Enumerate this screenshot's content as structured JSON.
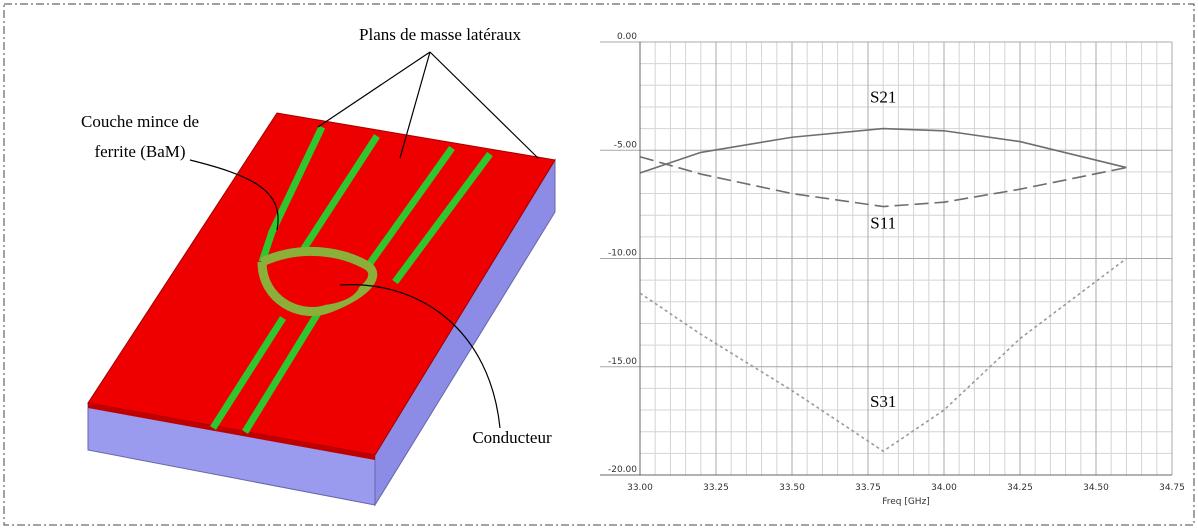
{
  "diagram": {
    "labels": {
      "ground": "Plans de masse latéraux",
      "ferrite_1": "Couche mince de",
      "ferrite_2": "ferrite (BaM)",
      "conductor": "Conducteur"
    }
  },
  "chart_data": {
    "type": "line",
    "x": [
      33.0,
      33.2,
      33.5,
      33.8,
      34.0,
      34.25,
      34.6
    ],
    "xlabel": "Freq [GHz]",
    "xlim": [
      33,
      34.75
    ],
    "xticks": [
      {
        "value": 33,
        "label": "33.00"
      },
      {
        "value": 33.25,
        "label": "33.25"
      },
      {
        "value": 33.5,
        "label": "33.50"
      },
      {
        "value": 33.75,
        "label": "33.75"
      },
      {
        "value": 34,
        "label": "34.00"
      },
      {
        "value": 34.25,
        "label": "34.25"
      },
      {
        "value": 34.5,
        "label": "34.50"
      },
      {
        "value": 34.75,
        "label": "34.75"
      }
    ],
    "ylim": [
      -20,
      0
    ],
    "yticks": [
      {
        "value": 0,
        "label": "0.00"
      },
      {
        "value": -5,
        "label": "-5.00"
      },
      {
        "value": -10,
        "label": "-10.00"
      },
      {
        "value": -15,
        "label": "-15.00"
      },
      {
        "value": -20,
        "label": "-20.00"
      }
    ],
    "grid": true,
    "minor_grid": true,
    "series": [
      {
        "name": "S21",
        "color": "#6e6e6e",
        "style": "solid",
        "values": [
          -6.05,
          -5.1,
          -4.4,
          -4.0,
          -4.1,
          -4.6,
          -5.8
        ]
      },
      {
        "name": "S11",
        "color": "#6e6e6e",
        "style": "dashed",
        "values": [
          -5.3,
          -6.1,
          -7.0,
          -7.6,
          -7.4,
          -6.8,
          -5.8
        ]
      },
      {
        "name": "S31",
        "color": "#9a9a9a",
        "style": "dotted",
        "values": [
          -11.6,
          -13.5,
          -16.1,
          -18.9,
          -17.0,
          -13.7,
          -10.0
        ]
      }
    ]
  }
}
